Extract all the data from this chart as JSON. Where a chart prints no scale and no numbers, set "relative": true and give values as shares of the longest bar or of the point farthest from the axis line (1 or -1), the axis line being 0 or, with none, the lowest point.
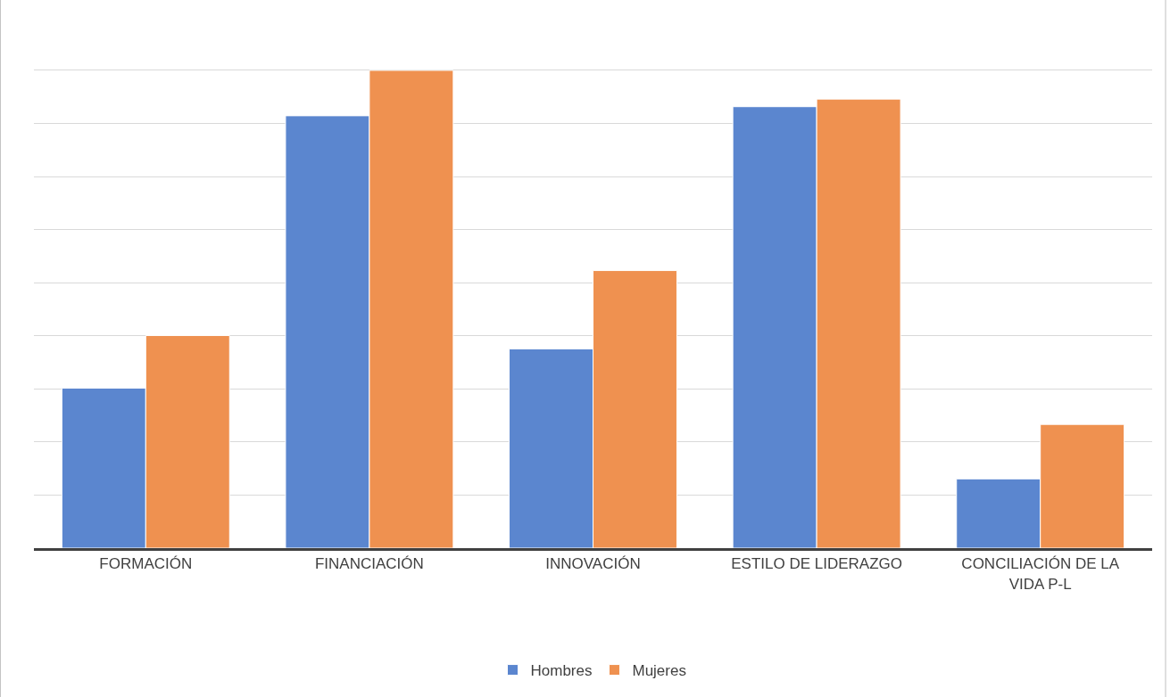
{
  "chart_data": {
    "type": "bar",
    "relative": true,
    "categories": [
      "FORMACIÓN",
      "FINANCIACIÓN",
      "INNOVACIÓN",
      "ESTILO DE LIDERAZGO",
      "CONCILIACIÓN DE LA VIDA P-L"
    ],
    "series": [
      {
        "name": "Hombres",
        "color": "#5b86cf",
        "values": [
          0.335,
          0.905,
          0.417,
          0.924,
          0.145
        ]
      },
      {
        "name": "Mujeres",
        "color": "#ef9150",
        "values": [
          0.445,
          1,
          0.581,
          0.94,
          0.259
        ]
      }
    ],
    "grid": "y",
    "legend": "bottom"
  }
}
